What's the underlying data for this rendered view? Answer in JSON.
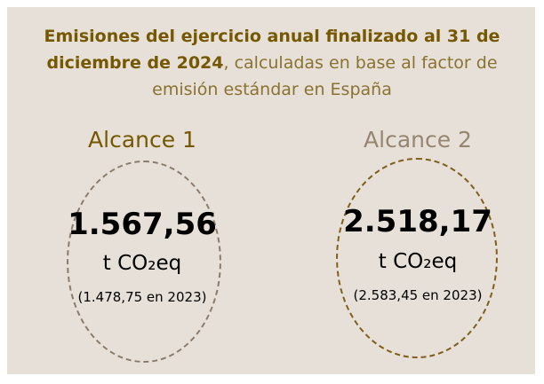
{
  "title_bold": "Emisiones del ejercicio anual finalizado al 31 de diciembre de 2024",
  "title_rest": ", calculadas en base al factor de emisión estándar en España",
  "scopes": [
    {
      "label": "Alcance 1",
      "value": "1.567,56",
      "unit": "t CO₂eq",
      "previous": "(1.478,75 en 2023)"
    },
    {
      "label": "Alcance 2",
      "value": "2.518,17",
      "unit": "t CO₂eq",
      "previous": "(2.583,45 en 2023)"
    }
  ]
}
